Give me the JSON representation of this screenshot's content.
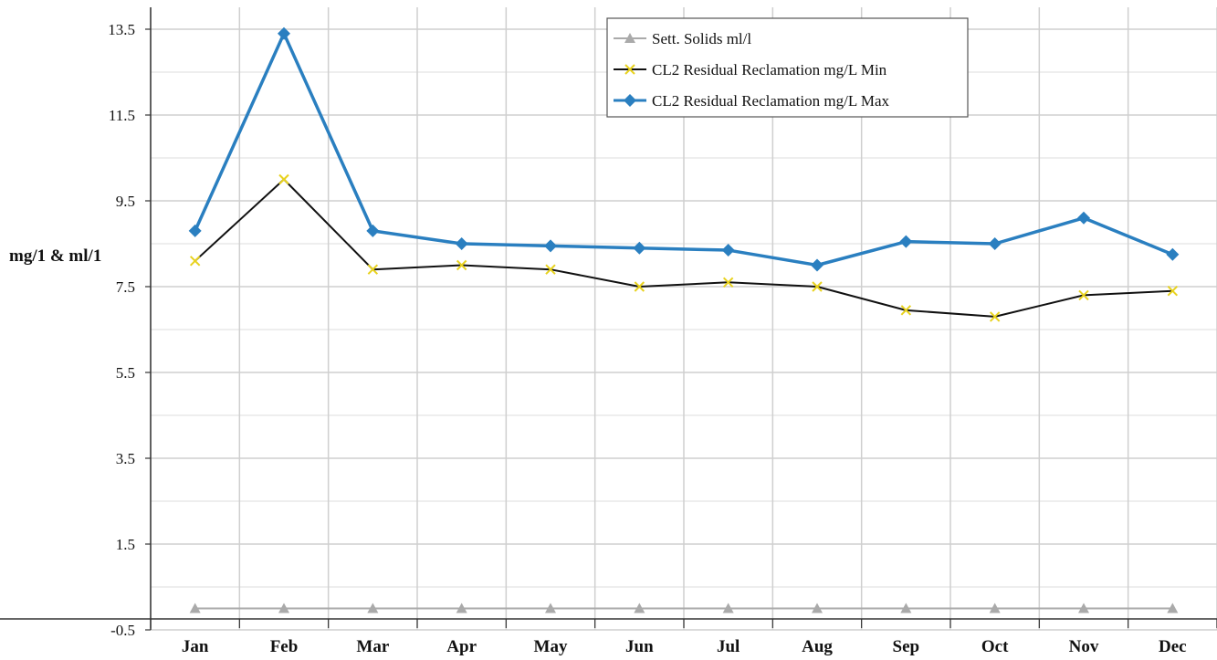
{
  "chart_data": {
    "type": "line",
    "title": "",
    "xlabel": "",
    "ylabel": "mg/1 & ml/1",
    "categories": [
      "Jan",
      "Feb",
      "Mar",
      "Apr",
      "May",
      "Jun",
      "Jul",
      "Aug",
      "Sep",
      "Oct",
      "Nov",
      "Dec"
    ],
    "y_ticks": [
      "13.5",
      "11.5",
      "9.5",
      "7.5",
      "5.5",
      "3.5",
      "1.5",
      "-0.5"
    ],
    "ylim": [
      -0.5,
      13.5
    ],
    "grid": true,
    "legend_position": "top-right",
    "series": [
      {
        "name": "Sett. Solids  ml/l",
        "color": "#aaaaaa",
        "marker": "triangle",
        "values": [
          0,
          0,
          0,
          0,
          0,
          0,
          0,
          0,
          0,
          0,
          0,
          0
        ]
      },
      {
        "name": "CL2 Residual Reclamation mg/L Min",
        "color": "#111111",
        "marker_color": "#e8d21e",
        "marker": "x",
        "values": [
          8.1,
          10.0,
          7.9,
          8.0,
          7.9,
          7.5,
          7.6,
          7.5,
          6.95,
          6.8,
          7.3,
          7.4
        ]
      },
      {
        "name": "CL2 Residual Reclamation mg/L Max",
        "color": "#2a7fc0",
        "marker": "diamond",
        "values": [
          8.8,
          13.4,
          8.8,
          8.5,
          8.45,
          8.4,
          8.35,
          8.0,
          8.55,
          8.5,
          9.1,
          8.25
        ]
      }
    ]
  }
}
